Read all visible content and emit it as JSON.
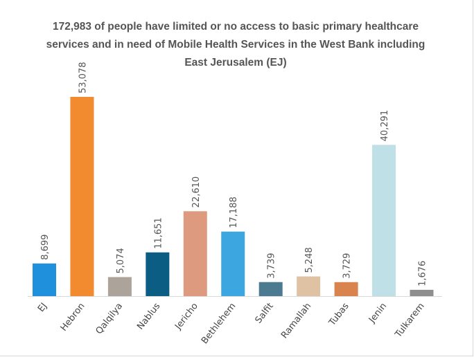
{
  "chart_data": {
    "type": "bar",
    "title_lines": [
      "172,983 of people have limited or no access to basic primary healthcare",
      "services and in need of Mobile Health Services in the West Bank including",
      "East Jerusalem (EJ)"
    ],
    "categories": [
      "EJ",
      "Hebron",
      "Qalqilya",
      "Nablus",
      "Jericho",
      "Bethlehem",
      "Salfit",
      "Ramallah",
      "Tubas",
      "Jenin",
      "Tulkarem"
    ],
    "values": [
      8699,
      53078,
      5074,
      11651,
      22610,
      17188,
      3739,
      5248,
      3729,
      40291,
      1676
    ],
    "value_labels": [
      "8,699",
      "53,078",
      "5,074",
      "11,651",
      "22,610",
      "17,188",
      "3,739",
      "5,248",
      "3,729",
      "40,291",
      "1,676"
    ],
    "colors": [
      "#1f90db",
      "#f28a2f",
      "#aca39a",
      "#0b5d84",
      "#de9a7f",
      "#3ca6e0",
      "#4c7a91",
      "#dfc2a4",
      "#d9834e",
      "#bfe0e6",
      "#8e8e8e"
    ],
    "xlabel": "",
    "ylabel": "",
    "grid": false,
    "legend": "none"
  }
}
